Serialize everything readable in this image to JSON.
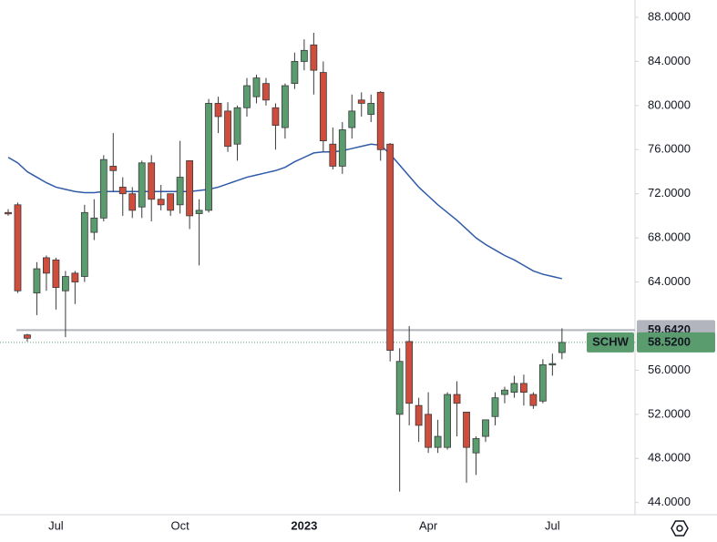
{
  "chart_data": {
    "type": "candlestick",
    "categories": [
      null,
      null,
      null,
      null,
      null,
      "Jul",
      null,
      null,
      null,
      null,
      null,
      null,
      null,
      null,
      null,
      null,
      null,
      null,
      "Oct",
      null,
      null,
      null,
      null,
      null,
      null,
      null,
      null,
      null,
      null,
      null,
      null,
      "2023",
      null,
      null,
      null,
      null,
      null,
      null,
      null,
      null,
      null,
      null,
      null,
      null,
      "Apr",
      null,
      null,
      null,
      null,
      null,
      null,
      null,
      null,
      null,
      null,
      null,
      null,
      "Jul",
      null
    ],
    "open": [
      70.3,
      71.0,
      59.2,
      63.0,
      66.2,
      66.0,
      63.2,
      64.8,
      64.5,
      68.5,
      69.8,
      74.5,
      72.6,
      72.0,
      70.8,
      74.8,
      71.5,
      72.0,
      71.0,
      75.0,
      70.2,
      70.5,
      80.2,
      79.5,
      76.5,
      79.8,
      80.8,
      82.0,
      79.8,
      78.0,
      82.0,
      84.0,
      85.5,
      83.0,
      76.5,
      74.5,
      78.0,
      80.5,
      79.2,
      81.2,
      76.5,
      52.0,
      58.6,
      52.8,
      52.0,
      49.0,
      49.0,
      53.8,
      52.2,
      48.5,
      50.0,
      51.8,
      53.8,
      54.0,
      54.8,
      53.8,
      53.2,
      56.5,
      57.6
    ],
    "high": [
      70.6,
      71.2,
      59.3,
      65.8,
      66.4,
      66.2,
      65.0,
      65.0,
      71.0,
      71.5,
      75.5,
      77.5,
      73.5,
      72.6,
      75.0,
      75.5,
      72.8,
      72.0,
      76.8,
      75.0,
      71.5,
      80.6,
      80.8,
      80.3,
      80.0,
      82.5,
      82.8,
      82.5,
      80.2,
      82.0,
      84.8,
      86.0,
      86.6,
      84.0,
      78.0,
      78.5,
      81.0,
      81.2,
      81.0,
      81.3,
      76.6,
      58.0,
      60.0,
      53.5,
      54.0,
      51.5,
      54.0,
      55.0,
      52.2,
      50.0,
      51.5,
      54.0,
      54.5,
      55.5,
      55.6,
      54.0,
      57.0,
      57.5,
      59.8
    ],
    "low": [
      70.0,
      63.0,
      58.6,
      61.0,
      63.2,
      61.5,
      59.0,
      62.0,
      64.0,
      67.8,
      69.5,
      72.2,
      70.0,
      69.8,
      69.8,
      69.5,
      70.5,
      70.0,
      70.2,
      68.8,
      65.5,
      70.3,
      77.5,
      75.8,
      75.0,
      79.0,
      80.2,
      80.0,
      76.0,
      77.0,
      81.5,
      83.2,
      81.0,
      75.8,
      74.2,
      73.8,
      77.0,
      79.0,
      78.5,
      75.0,
      56.8,
      45.0,
      51.0,
      49.5,
      48.5,
      48.5,
      48.8,
      50.0,
      45.8,
      46.5,
      49.5,
      51.0,
      53.0,
      53.5,
      52.8,
      52.5,
      53.0,
      55.5,
      57.0
    ],
    "close": [
      70.2,
      63.2,
      58.9,
      65.2,
      64.8,
      63.5,
      64.5,
      64.0,
      70.3,
      69.8,
      75.1,
      74.1,
      72.0,
      70.5,
      74.8,
      71.5,
      71.0,
      70.5,
      73.5,
      70.0,
      70.5,
      80.2,
      79.0,
      76.3,
      79.8,
      81.8,
      82.5,
      80.5,
      78.2,
      81.8,
      84.0,
      85.0,
      83.2,
      76.8,
      74.5,
      77.8,
      79.5,
      80.2,
      80.2,
      76.0,
      57.8,
      56.8,
      53.0,
      51.0,
      49.0,
      50.0,
      53.8,
      53.0,
      49.0,
      49.8,
      51.5,
      53.5,
      54.2,
      54.8,
      54.0,
      52.8,
      56.5,
      56.6,
      58.52
    ],
    "up_color": "#5a9c6e",
    "down_color": "#cf4d3d",
    "moving_average": {
      "color": "#2f5aa8",
      "values": [
        75.3,
        74.8,
        74.0,
        73.5,
        73.0,
        72.6,
        72.4,
        72.2,
        72.1,
        72.1,
        72.2,
        72.2,
        72.2,
        72.2,
        72.2,
        72.2,
        72.2,
        72.2,
        72.2,
        72.2,
        72.3,
        72.4,
        72.6,
        72.9,
        73.2,
        73.5,
        73.7,
        73.9,
        74.1,
        74.4,
        74.9,
        75.3,
        75.7,
        75.8,
        75.8,
        75.9,
        76.1,
        76.3,
        76.5,
        76.4,
        75.6,
        74.6,
        73.6,
        72.6,
        71.8,
        71.0,
        70.3,
        69.6,
        68.8,
        68.0,
        67.4,
        66.9,
        66.4,
        66.0,
        65.5,
        65.0,
        64.7,
        64.5,
        64.3
      ]
    },
    "level": {
      "value": 59.642,
      "label": "59.6420",
      "color": "#b2b5be"
    },
    "last": {
      "name": "SCHW",
      "value": 58.52,
      "label": "58.5200",
      "color": "#5a9c6e"
    },
    "ylim": [
      42.9,
      89.57
    ],
    "yticks": [
      {
        "value": 44,
        "label": "44.0000"
      },
      {
        "value": 48,
        "label": "48.0000"
      },
      {
        "value": 52,
        "label": "52.0000"
      },
      {
        "value": 56,
        "label": "56.0000"
      },
      {
        "value": 64,
        "label": "64.0000"
      },
      {
        "value": 68,
        "label": "68.0000"
      },
      {
        "value": 72,
        "label": "72.0000"
      },
      {
        "value": 76,
        "label": "76.0000"
      },
      {
        "value": 80,
        "label": "80.0000"
      },
      {
        "value": 84,
        "label": "84.0000"
      },
      {
        "value": 88,
        "label": "88.0000"
      }
    ],
    "grid": false
  }
}
